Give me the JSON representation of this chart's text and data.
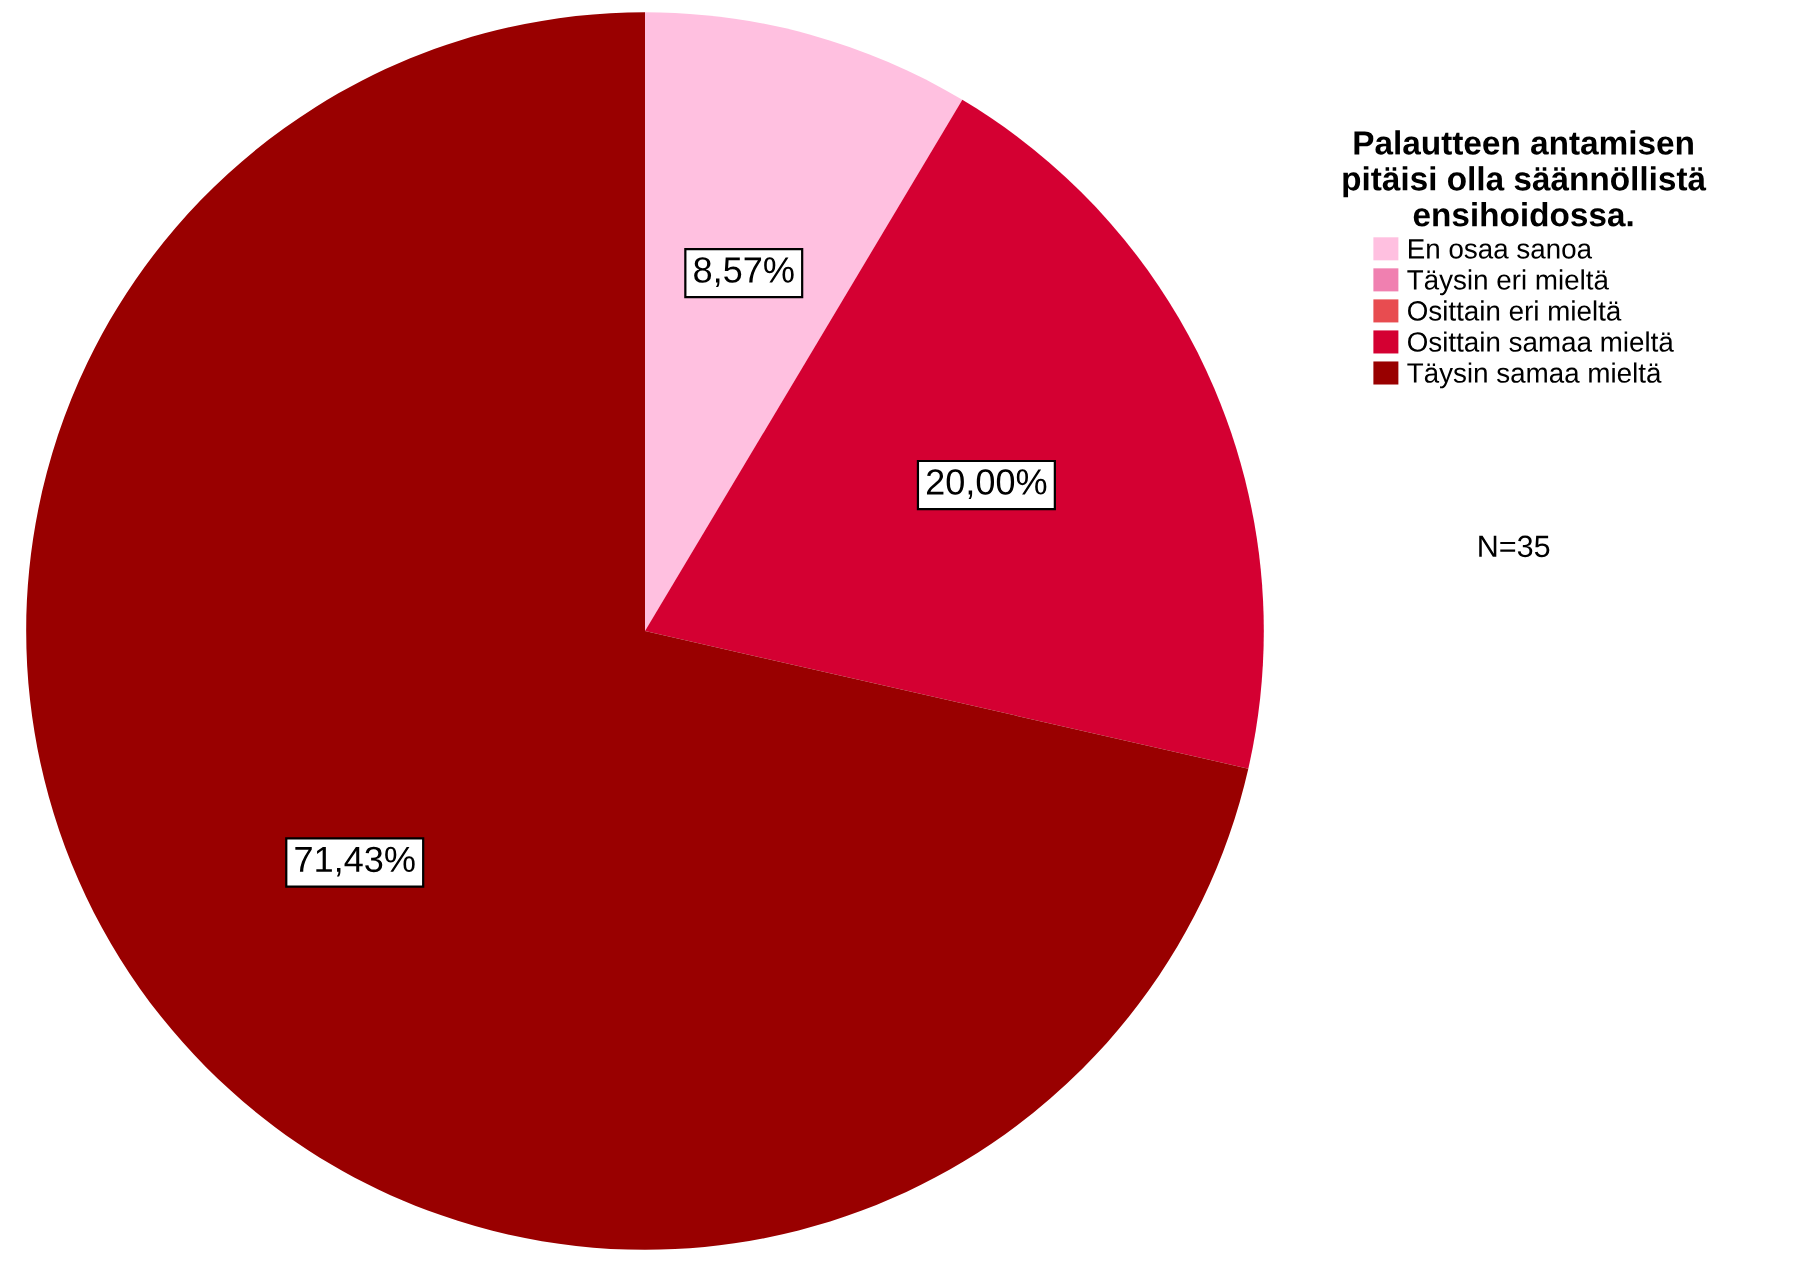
{
  "chart_data": {
    "type": "pie",
    "legend_title": "Palautteen antamisen\npitäisi olla säännöllistä\nensihoidossa.",
    "categories": [
      "En osaa sanoa",
      "Täysin eri mieltä",
      "Osittain eri mieltä",
      "Osittain samaa mieltä",
      "Täysin samaa mieltä"
    ],
    "values": [
      8.57,
      0,
      0,
      20.0,
      71.43
    ],
    "colors": [
      "#ffc0e0",
      "#f080b0",
      "#e84c50",
      "#d40032",
      "#990000"
    ],
    "value_labels": [
      "8,57%",
      null,
      null,
      "20,00%",
      "71,43%"
    ],
    "legend": "right",
    "annotations": [
      "N=35"
    ]
  }
}
